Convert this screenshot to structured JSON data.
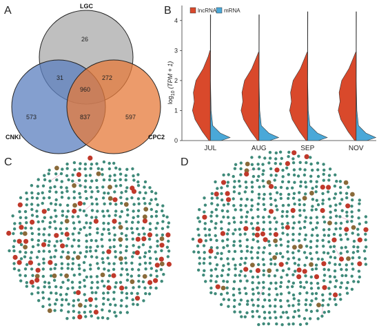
{
  "panels": {
    "a": "A",
    "b": "B",
    "c": "C",
    "d": "D"
  },
  "venn": {
    "sets": [
      {
        "name": "LGC",
        "color": "#a9a9a9"
      },
      {
        "name": "CNKI",
        "color": "#5b7fbf"
      },
      {
        "name": "CPC2",
        "color": "#e67a3a"
      }
    ],
    "counts": {
      "lgc_only": "26",
      "lgc_cnki": "31",
      "all_three": "960",
      "lgc_cpc2": "272",
      "cnki_only": "573",
      "cnki_cpc2": "837",
      "cpc2_only": "597"
    }
  },
  "chart_data": {
    "type": "violin",
    "ylabel_prefix": "log",
    "ylabel_sub": "10",
    "ylabel_main": " (TPM + 1)",
    "ylim": [
      0,
      4.5
    ],
    "yticks": [
      0,
      1,
      2,
      3,
      4
    ],
    "categories": [
      "JUL",
      "AUG",
      "SEP",
      "NOV"
    ],
    "legend": [
      {
        "name": "lncRNA",
        "color": "#d9492b"
      },
      {
        "name": "mRNA",
        "color": "#4aa8d8"
      }
    ],
    "density_lncRNA": [
      [
        0,
        0.08
      ],
      [
        0.3,
        0.45
      ],
      [
        0.7,
        0.85
      ],
      [
        1.0,
        1.0
      ],
      [
        1.3,
        0.9
      ],
      [
        1.6,
        0.95
      ],
      [
        2.0,
        0.8
      ],
      [
        2.4,
        0.4
      ],
      [
        2.8,
        0.12
      ],
      [
        3.3,
        0.02
      ],
      [
        4.3,
        0.0
      ]
    ],
    "density_mRNA": [
      [
        0,
        0.55
      ],
      [
        0.1,
        1.0
      ],
      [
        0.25,
        0.5
      ],
      [
        0.5,
        0.12
      ],
      [
        1.0,
        0.04
      ],
      [
        2.0,
        0.01
      ],
      [
        3.0,
        0.0
      ]
    ],
    "max_lncRNA": [
      3.0,
      2.95,
      2.95,
      2.95
    ],
    "max_mRNA": [
      4.2,
      4.2,
      4.3,
      4.3
    ]
  },
  "networks": {
    "node_green": "#3f8a7a",
    "node_red": "#c0392b",
    "node_brown": "#8a6a3a",
    "edge_color": "#e8a0c0"
  }
}
